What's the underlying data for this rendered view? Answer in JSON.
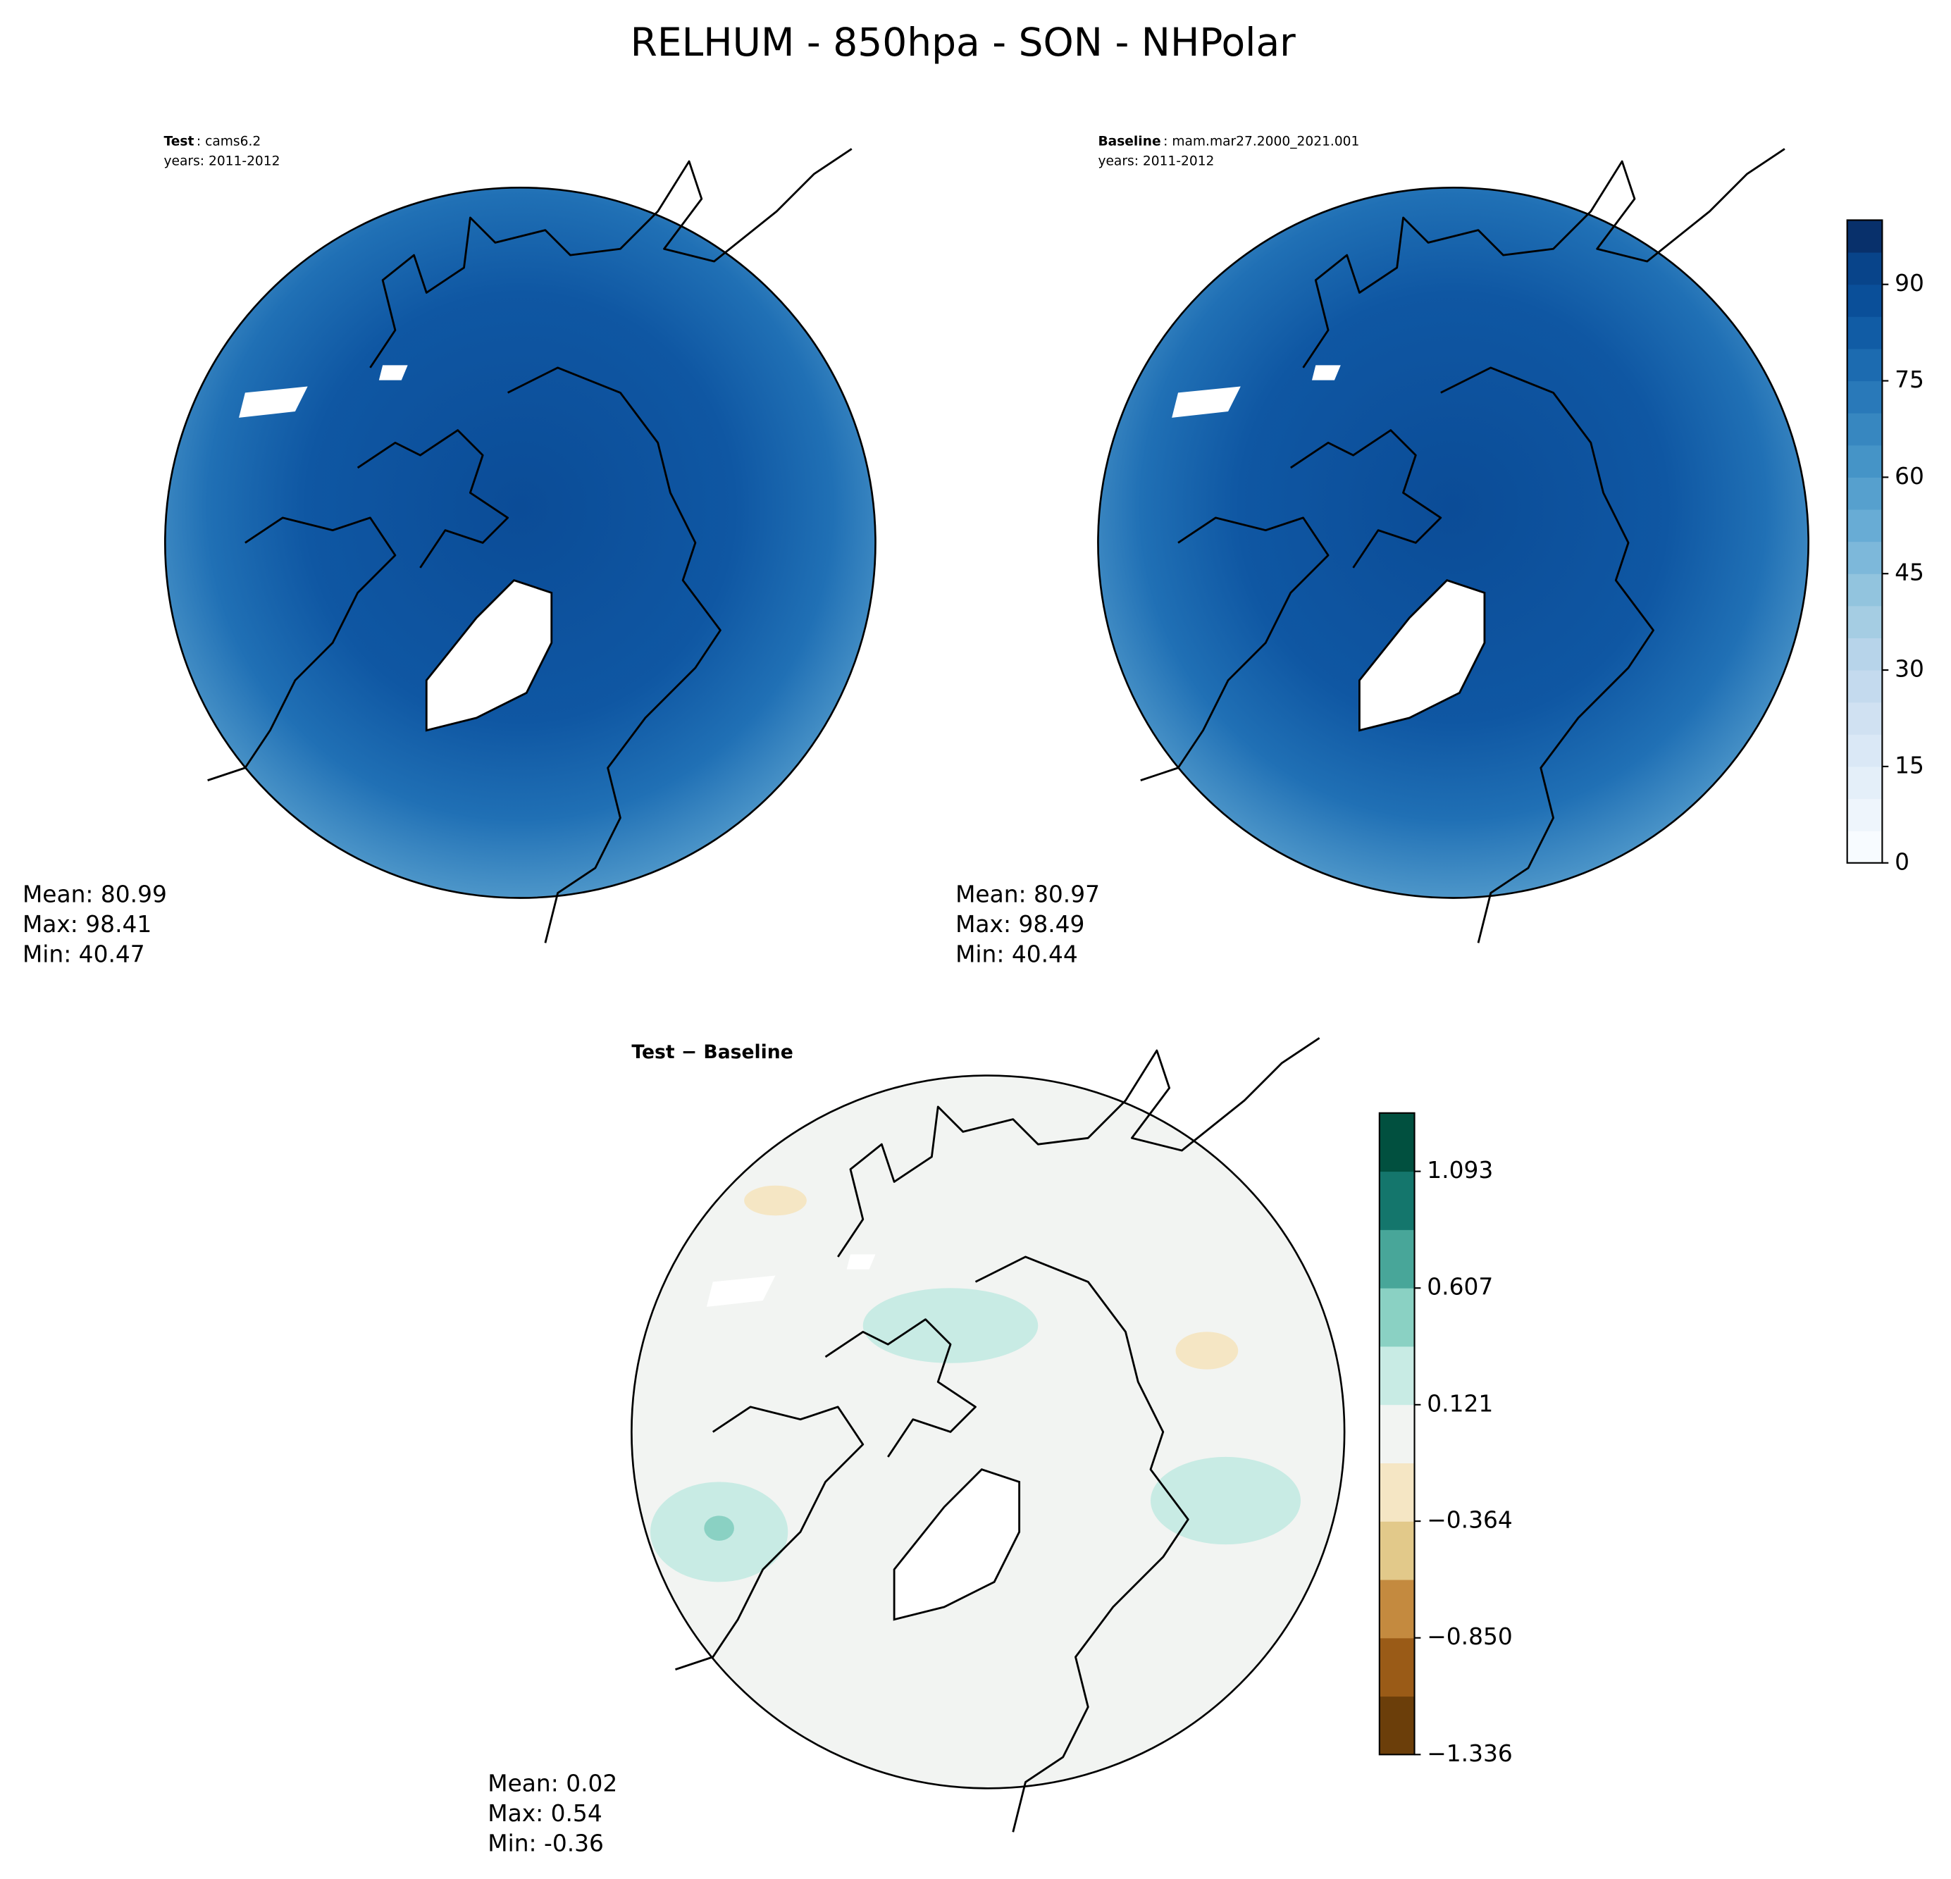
{
  "title": "RELHUM - 850hpa - SON - NHPolar",
  "panels": [
    {
      "name": "Test",
      "case": ": cams6.2",
      "years": "years: 2011-2012",
      "stats": [
        "Mean: 80.99",
        "Max: 98.41",
        "Min: 40.47"
      ]
    },
    {
      "name": "Baseline",
      "case": ": mam.mar27.2000_2021.001",
      "years": "years: 2011-2012",
      "stats": [
        "Mean: 80.97",
        "Max: 98.49",
        "Min: 40.44"
      ]
    },
    {
      "name": "Test − Baseline",
      "stats": [
        "Mean:  0.02",
        "Max:  0.54",
        "Min: -0.36"
      ]
    }
  ],
  "colorbars": [
    {
      "lim": [
        0,
        100
      ],
      "ticks": [
        0,
        15,
        30,
        45,
        60,
        75,
        90
      ],
      "colors": [
        "#f7fbff",
        "#eef5fc",
        "#e4eff9",
        "#dae8f6",
        "#d0e1f2",
        "#c4daee",
        "#b7d4ea",
        "#a5cde3",
        "#92c4de",
        "#7db8da",
        "#68acd5",
        "#56a0ce",
        "#4594c7",
        "#3787c0",
        "#2979b9",
        "#1c6bb0",
        "#115ca5",
        "#0a4f99",
        "#08448a",
        "#08306b"
      ]
    },
    {
      "lim": [
        -1.336,
        1.336
      ],
      "ticks": [
        {
          "value": -1.336,
          "label": "−1.336"
        },
        {
          "value": -0.85,
          "label": "−0.850"
        },
        {
          "value": -0.364,
          "label": "−0.364"
        },
        0.121,
        0.607,
        1.093
      ],
      "colors": [
        "#6b3e0a",
        "#9a5b17",
        "#c48a3f",
        "#e2c98a",
        "#f5e6c4",
        "#f2f4f2",
        "#c8ebe4",
        "#8ad1c3",
        "#48a699",
        "#14766c",
        "#01503f"
      ]
    }
  ]
}
